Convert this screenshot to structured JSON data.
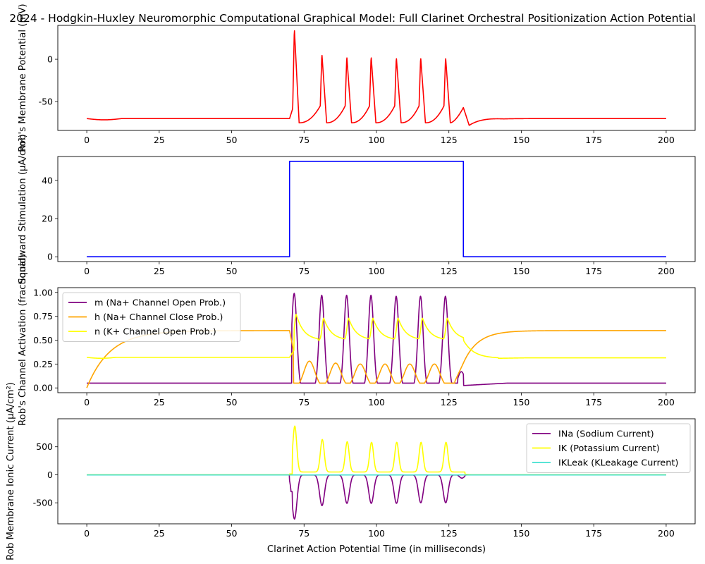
{
  "figure": {
    "title": "2024 - Hodgkin-Huxley Neuromorphic Computational Graphical Model: Full Clarinet Orchestral Positionization Action Potential"
  },
  "chart_data": [
    {
      "type": "line",
      "ylabel": "Rob's Membrane Potential (mV)",
      "xlabel": "",
      "xlim": [
        -10,
        210
      ],
      "ylim": [
        -84,
        40
      ],
      "xticks": [
        0,
        25,
        50,
        75,
        100,
        125,
        150,
        175,
        200
      ],
      "yticks": [
        -50,
        0
      ],
      "legend": null,
      "series": [
        {
          "name": "",
          "color": "#ff0000",
          "kind": "membrane",
          "rest": -70,
          "onset": 70,
          "spike_peaks": [
            37,
            7,
            4,
            4,
            3,
            3,
            3
          ],
          "failed_peak": -57,
          "spike_times": [
            71.1,
            80.6,
            89.2,
            97.6,
            106.3,
            114.7,
            123.3
          ],
          "offset": 130
        }
      ]
    },
    {
      "type": "line",
      "ylabel": "Squidward Stimulation (μA/cm²)",
      "xlabel": "",
      "xlim": [
        -10,
        210
      ],
      "ylim": [
        -2.5,
        52.5
      ],
      "xticks": [
        0,
        25,
        50,
        75,
        100,
        125,
        150,
        175,
        200
      ],
      "yticks": [
        0,
        20,
        40
      ],
      "legend": null,
      "series": [
        {
          "name": "",
          "color": "#0000ff",
          "kind": "step",
          "x": [
            0,
            70,
            70,
            130,
            130,
            200
          ],
          "y": [
            0,
            0,
            50,
            50,
            0,
            0
          ]
        }
      ]
    },
    {
      "type": "line",
      "ylabel": "Rob's Channel Activation (fractional)",
      "xlabel": "",
      "xlim": [
        -10,
        210
      ],
      "ylim": [
        -0.05,
        1.05
      ],
      "xticks": [
        0,
        25,
        50,
        75,
        100,
        125,
        150,
        175,
        200
      ],
      "yticks": [
        0.0,
        0.25,
        0.5,
        0.75,
        1.0
      ],
      "yticklabels": [
        "0.00",
        "0.25",
        "0.50",
        "0.75",
        "1.00"
      ],
      "legend": "upper-left",
      "series": [
        {
          "name": "m (Na+ Channel Open Prob.)",
          "color": "#800080",
          "kind": "gating-m",
          "rest": 0.05,
          "spike_value": [
            0.99,
            0.97,
            0.97,
            0.97,
            0.96,
            0.96,
            0.96
          ],
          "trough": 0.03
        },
        {
          "name": "h (Na+ Channel Close Prob.)",
          "color": "#ffa500",
          "kind": "gating-h",
          "start": 0.0,
          "rest": 0.6,
          "between_spikes_max": [
            0.28,
            0.26,
            0.25,
            0.25,
            0.25,
            0.25
          ],
          "trough": 0.05,
          "offset_value": 0.26
        },
        {
          "name": "n (K+ Channel Open Prob.)",
          "color": "#ffff00",
          "kind": "gating-n",
          "start": 0.32,
          "rest": 0.32,
          "spike_value": [
            0.77,
            0.73,
            0.73,
            0.73,
            0.73,
            0.73,
            0.73
          ],
          "trough": 0.5,
          "post_min": 0.31
        }
      ]
    },
    {
      "type": "line",
      "ylabel": "Rob Membrane Ionic Current (μA/cm²)",
      "xlabel": "Clarinet Action Potential Time (in milliseconds)",
      "xlim": [
        -10,
        210
      ],
      "ylim": [
        -875,
        1000
      ],
      "xticks": [
        0,
        25,
        50,
        75,
        100,
        125,
        150,
        175,
        200
      ],
      "yticks": [
        -500,
        0,
        500
      ],
      "legend": "upper-right",
      "series": [
        {
          "name": "INa (Sodium Current)",
          "color": "#800080",
          "kind": "current-na",
          "spike_values": [
            -790,
            -550,
            -510,
            -510,
            -510,
            -500,
            -500
          ]
        },
        {
          "name": "IK (Potassium Current)",
          "color": "#ffff00",
          "kind": "current-k",
          "spike_values": [
            870,
            630,
            590,
            580,
            580,
            580,
            580
          ],
          "baseline_during": 50
        },
        {
          "name": "IKLeak (KLeakage Current)",
          "color": "#40e0d0",
          "kind": "current-leak",
          "value": -3
        }
      ]
    }
  ]
}
